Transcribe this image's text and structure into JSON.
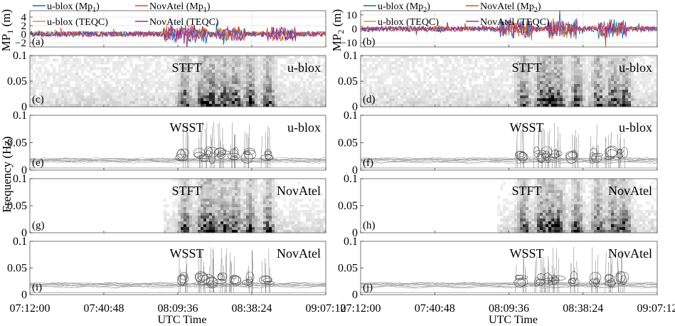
{
  "figure": {
    "ylabel_shared": "Frequency (Hz)",
    "xlabel": "UTC Time",
    "x_tick_labels": [
      "07:12:00",
      "07:40:48",
      "08:09:36",
      "08:38:24",
      "09:07:12"
    ]
  },
  "chart_data": [
    {
      "panel": "(a)",
      "type": "line",
      "ylabel": "MP_1 (m)",
      "yticks": [
        -2,
        0,
        2,
        4
      ],
      "ylim": [
        -3,
        5.5
      ],
      "xlim": [
        "07:12:00",
        "09:07:12"
      ],
      "legend_placement": "top",
      "series": [
        {
          "name": "u-blox (Mp1)",
          "color": "#0072BD"
        },
        {
          "name": "NovAtel (Mp1)",
          "color": "#D95319"
        },
        {
          "name": "u-blox (TEQC)",
          "color": "#C9A227"
        },
        {
          "name": "NovAtel (TEQC)",
          "color": "#9B2C9B"
        }
      ]
    },
    {
      "panel": "(b)",
      "type": "line",
      "ylabel": "MP_2 (m)",
      "yticks": [
        -10,
        0,
        10
      ],
      "ylim": [
        -13,
        13
      ],
      "xlim": [
        "07:12:00",
        "09:07:12"
      ],
      "legend_placement": "top",
      "series": [
        {
          "name": "u-blox (Mp2)",
          "color": "#0072BD"
        },
        {
          "name": "NovAtel (Mp2)",
          "color": "#D95319"
        },
        {
          "name": "u-blox (TEQC)",
          "color": "#C9A227"
        },
        {
          "name": "NovAtel (TEQC)",
          "color": "#9B2C9B"
        }
      ]
    },
    {
      "panel": "(c)",
      "type": "heatmap",
      "method": "STFT",
      "receiver": "u-blox",
      "yticks": [
        0,
        0.05,
        0.1
      ],
      "ylim": [
        0,
        0.1
      ]
    },
    {
      "panel": "(d)",
      "type": "heatmap",
      "method": "STFT",
      "receiver": "u-blox",
      "yticks": [
        0,
        0.05,
        0.1
      ],
      "ylim": [
        0,
        0.1
      ]
    },
    {
      "panel": "(e)",
      "type": "heatmap",
      "method": "WSST",
      "receiver": "u-blox",
      "yticks": [
        0,
        0.05,
        0.1
      ],
      "ylim": [
        0,
        0.1
      ]
    },
    {
      "panel": "(f)",
      "type": "heatmap",
      "method": "WSST",
      "receiver": "u-blox",
      "yticks": [
        0,
        0.05,
        0.1
      ],
      "ylim": [
        0,
        0.1
      ]
    },
    {
      "panel": "(g)",
      "type": "heatmap",
      "method": "STFT",
      "receiver": "NovAtel",
      "yticks": [
        0,
        0.05,
        0.1
      ],
      "ylim": [
        0,
        0.1
      ]
    },
    {
      "panel": "(h)",
      "type": "heatmap",
      "method": "STFT",
      "receiver": "NovAtel",
      "yticks": [
        0,
        0.05,
        0.1
      ],
      "ylim": [
        0,
        0.1
      ]
    },
    {
      "panel": "(i)",
      "type": "heatmap",
      "method": "WSST",
      "receiver": "NovAtel",
      "yticks": [
        0,
        0.05,
        0.1
      ],
      "ylim": [
        0,
        0.1
      ]
    },
    {
      "panel": "(j)",
      "type": "heatmap",
      "method": "WSST",
      "receiver": "NovAtel",
      "yticks": [
        0,
        0.05,
        0.1
      ],
      "ylim": [
        0,
        0.1
      ]
    }
  ]
}
